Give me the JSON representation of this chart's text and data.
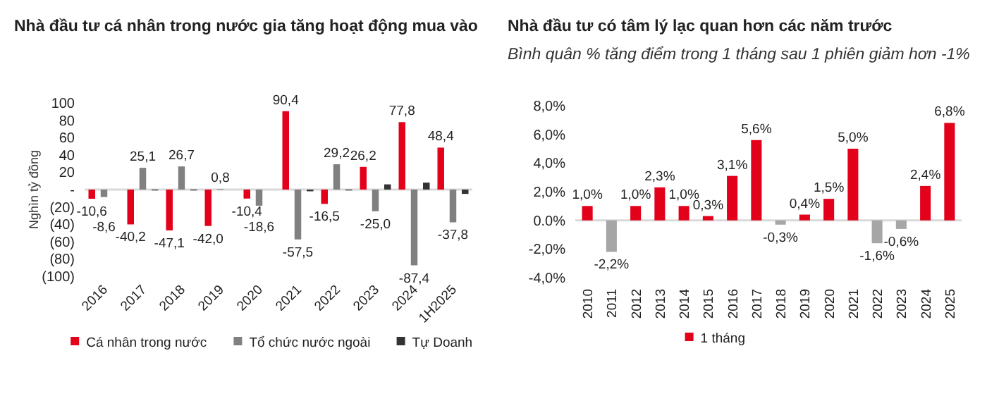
{
  "chart_data": [
    {
      "type": "bar",
      "title": "Nhà đầu tư cá nhân trong nước gia tăng hoạt động mua vào",
      "ylabel": "Nghìn tỷ đồng",
      "categories": [
        "2016",
        "2017",
        "2018",
        "2019",
        "2020",
        "2021",
        "2022",
        "2023",
        "2024",
        "1H2025"
      ],
      "series": [
        {
          "name": "Cá nhân trong nước",
          "color": "#e3001b",
          "values": [
            -10.6,
            -40.2,
            -47.1,
            -42.0,
            -10.4,
            90.4,
            -16.5,
            26.2,
            77.8,
            48.4
          ],
          "value_labels": [
            "-10,6",
            "-40,2",
            "-47,1",
            "-42,0",
            "-10,4",
            "90,4",
            "-16,5",
            "26,2",
            "77,8",
            "48,4"
          ]
        },
        {
          "name": "Tổ chức nước ngoài",
          "color": "#808080",
          "values": [
            -8.6,
            25.1,
            26.7,
            0.8,
            -18.6,
            -57.5,
            29.2,
            -25.0,
            -87.4,
            -37.8
          ],
          "value_labels": [
            "-8,6",
            "25,1",
            "26,7",
            "0,8",
            "-18,6",
            "-57,5",
            "29,2",
            "-25,0",
            "-87,4",
            "-37,8"
          ]
        },
        {
          "name": "Tự Doanh",
          "color": "#333333",
          "values": [
            null,
            -1,
            -1,
            null,
            null,
            -2,
            -1,
            6,
            8,
            -5
          ]
        }
      ],
      "ylim": [
        -100,
        100
      ],
      "yticks": [
        {
          "value": 100,
          "label": "100"
        },
        {
          "value": 80,
          "label": "80"
        },
        {
          "value": 60,
          "label": "60"
        },
        {
          "value": 40,
          "label": "40"
        },
        {
          "value": 20,
          "label": "20"
        },
        {
          "value": 0,
          "label": "-"
        },
        {
          "value": -20,
          "label": "(20)"
        },
        {
          "value": -40,
          "label": "(40)"
        },
        {
          "value": -60,
          "label": "(60)"
        },
        {
          "value": -80,
          "label": "(80)"
        },
        {
          "value": -100,
          "label": "(100)"
        }
      ],
      "legend": "bottom"
    },
    {
      "type": "bar",
      "title": "Nhà đầu tư có tâm lý lạc quan hơn các năm trước",
      "subtitle": "Bình quân % tăng điểm trong 1 tháng sau 1 phiên giảm hơn -1%",
      "categories": [
        "2010",
        "2011",
        "2012",
        "2013",
        "2014",
        "2015",
        "2016",
        "2017",
        "2018",
        "2019",
        "2020",
        "2021",
        "2022",
        "2023",
        "2024",
        "2025"
      ],
      "series": [
        {
          "name": "1 tháng",
          "color": "#e3001b",
          "values": [
            1.0,
            -2.2,
            1.0,
            2.3,
            1.0,
            0.3,
            3.1,
            5.6,
            -0.3,
            0.4,
            1.5,
            5.0,
            -1.6,
            -0.6,
            2.4,
            6.8
          ],
          "colors": [
            "#e3001b",
            "#a6a6a6",
            "#e3001b",
            "#e3001b",
            "#e3001b",
            "#e3001b",
            "#e3001b",
            "#e3001b",
            "#a6a6a6",
            "#e3001b",
            "#e3001b",
            "#e3001b",
            "#a6a6a6",
            "#a6a6a6",
            "#e3001b",
            "#e3001b"
          ],
          "value_labels": [
            "1,0%",
            "-2,2%",
            "1,0%",
            "2,3%",
            "1,0%",
            "0,3%",
            "3,1%",
            "5,6%",
            "-0,3%",
            "0,4%",
            "1,5%",
            "5,0%",
            "-1,6%",
            "-0,6%",
            "2,4%",
            "6,8%"
          ]
        }
      ],
      "ylim": [
        -4,
        8
      ],
      "yticks": [
        {
          "value": 8,
          "label": "8,0%"
        },
        {
          "value": 6,
          "label": "6,0%"
        },
        {
          "value": 4,
          "label": "4,0%"
        },
        {
          "value": 2,
          "label": "2,0%"
        },
        {
          "value": 0,
          "label": "0.0%"
        },
        {
          "value": -2,
          "label": "-2,0%"
        },
        {
          "value": -4,
          "label": "-4,0%"
        }
      ],
      "legend": "bottom"
    }
  ]
}
